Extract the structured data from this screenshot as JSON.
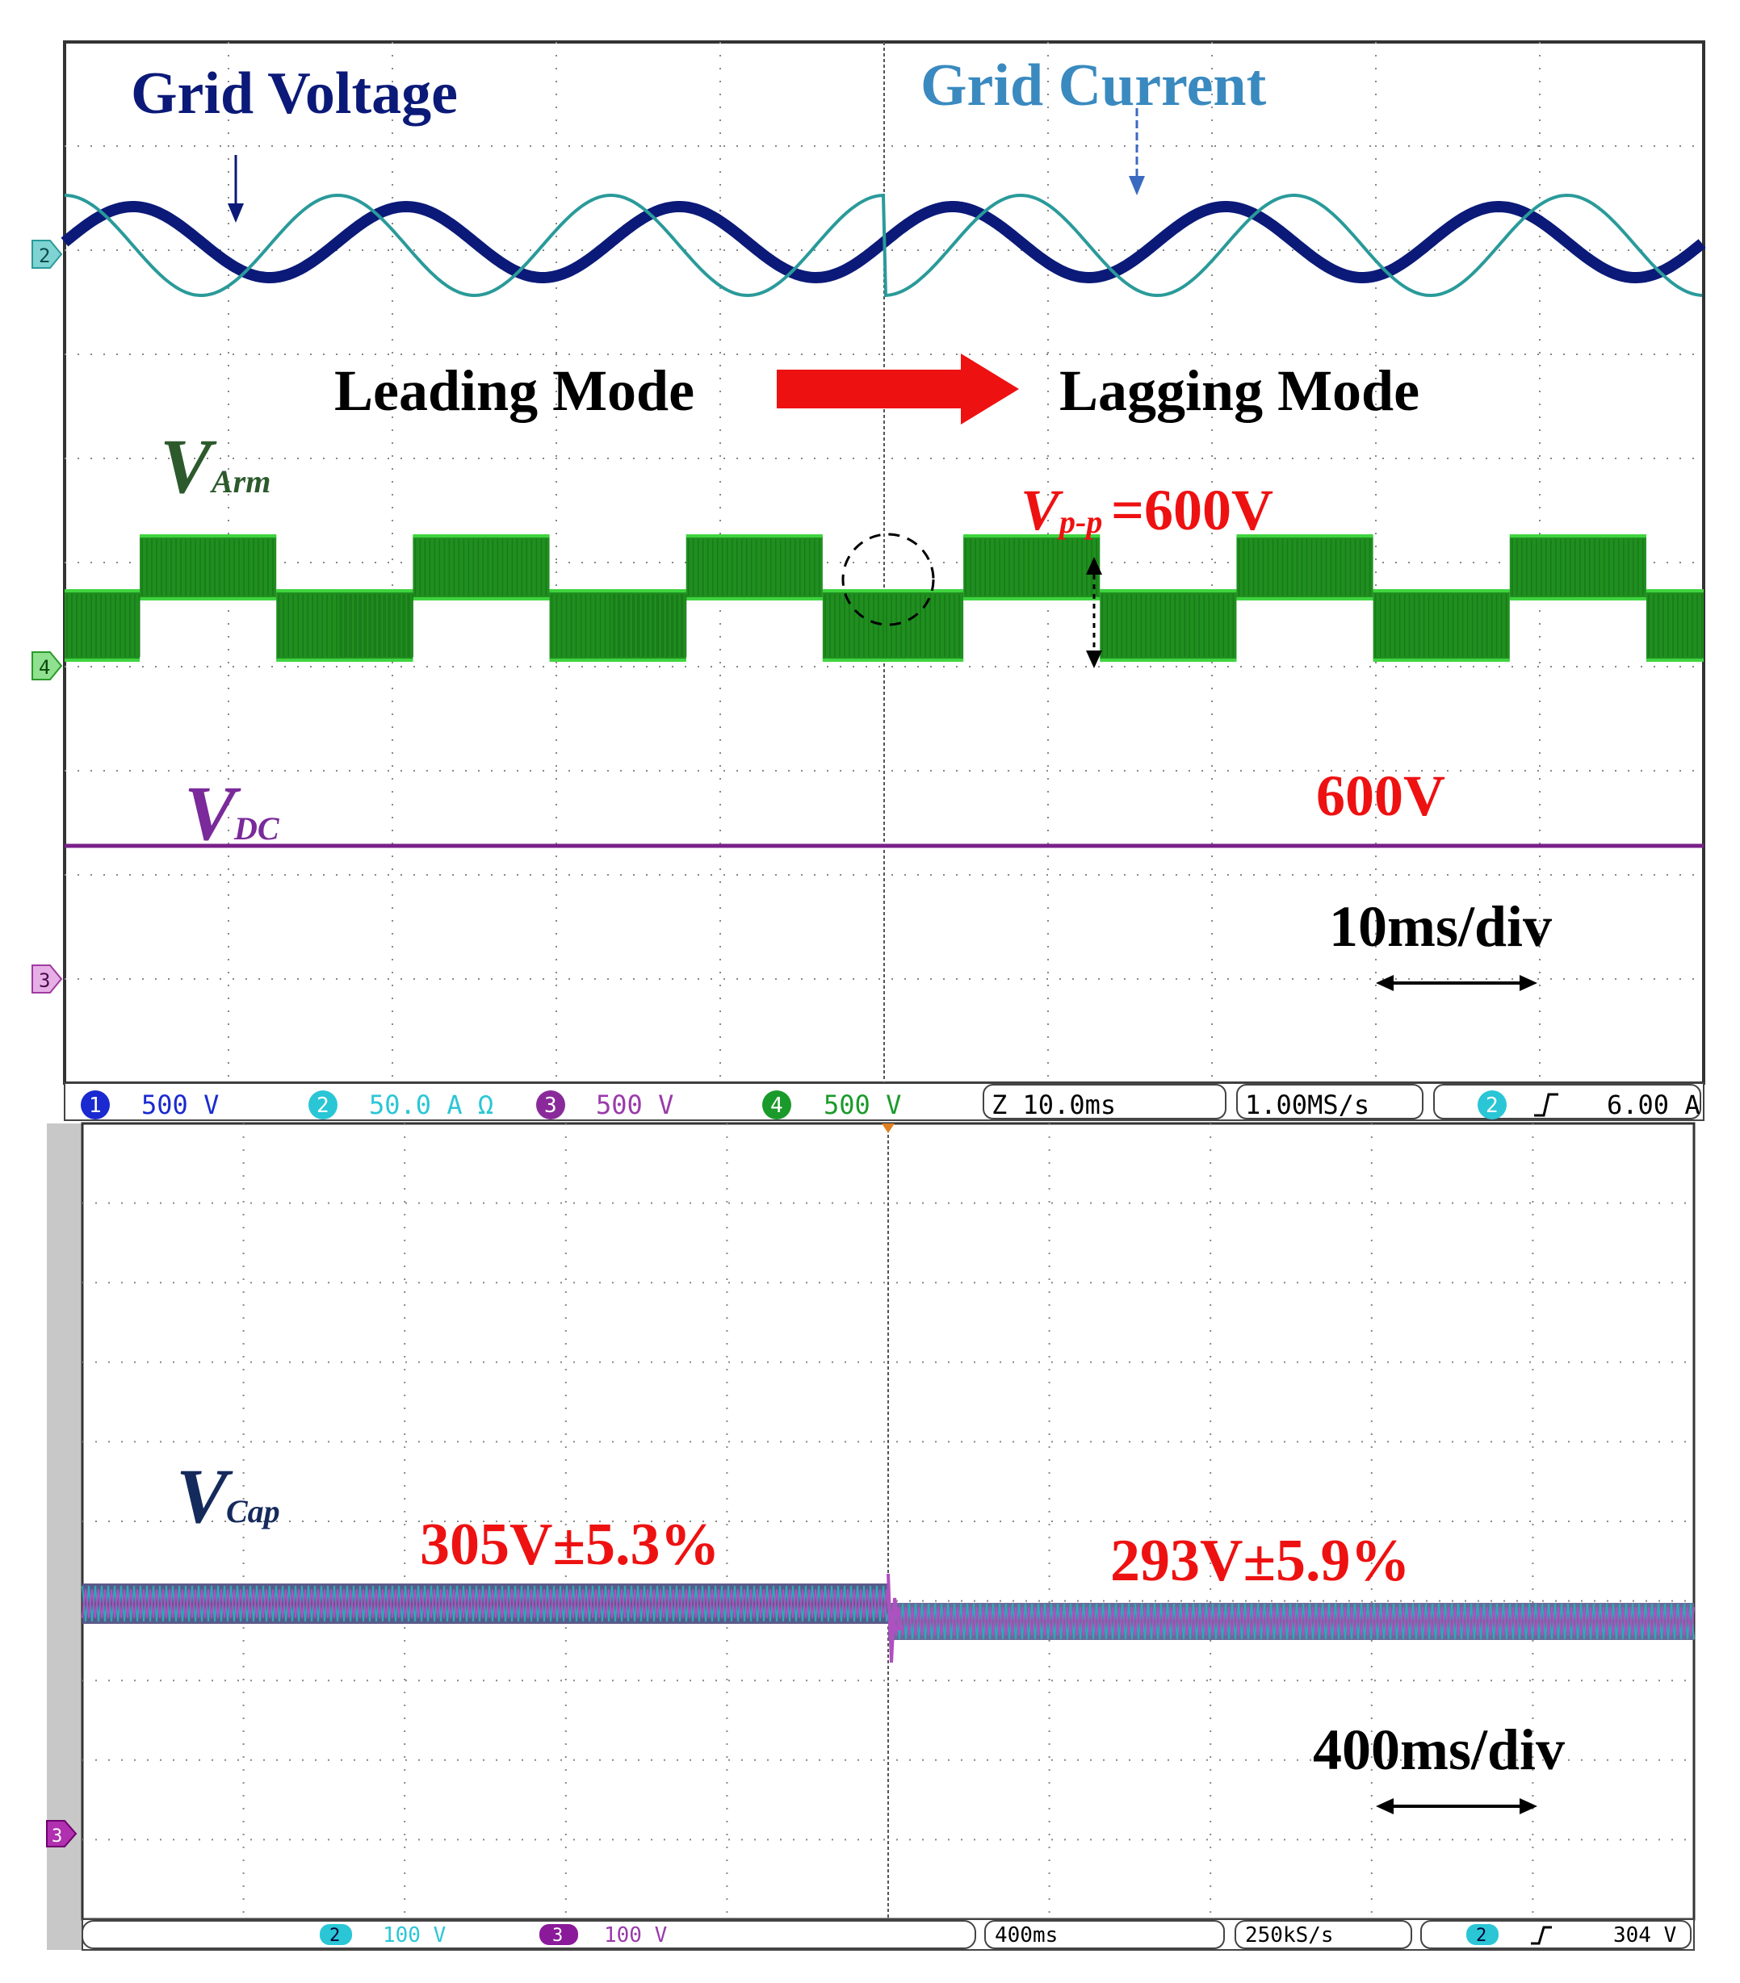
{
  "top_panel": {
    "labels": {
      "grid_voltage": "Grid Voltage",
      "grid_current": "Grid Current",
      "leading_mode": "Leading Mode",
      "lagging_mode": "Lagging Mode",
      "v_arm_main": "V",
      "v_arm_sub": "Arm",
      "vpp_main": "V",
      "vpp_sub": "p-p",
      "vpp_value": "=600V",
      "v_dc_main": "V",
      "v_dc_sub": "DC",
      "dc_value": "600V",
      "timescale": "10ms/div"
    },
    "status_bar": {
      "ch1": {
        "num": "1",
        "scale": "500 V"
      },
      "ch2": {
        "num": "2",
        "scale": "50.0 A Ω"
      },
      "ch3": {
        "num": "3",
        "scale": "500 V"
      },
      "ch4": {
        "num": "4",
        "scale": "500 V"
      },
      "time": "Z 10.0ms",
      "rate": "1.00MS/s",
      "trig_ch": "2",
      "trig_level": "6.00 A"
    },
    "markers": [
      "2",
      "4",
      "3"
    ]
  },
  "bottom_panel": {
    "labels": {
      "v_cap_main": "V",
      "v_cap_sub": "Cap",
      "before_value": "305V±5.3%",
      "after_value": "293V±5.9%",
      "timescale": "400ms/div"
    },
    "status_bar": {
      "ch2": {
        "num": "2",
        "scale": "100 V"
      },
      "ch3": {
        "num": "3",
        "scale": "100 V"
      },
      "time": "400ms",
      "rate": "250kS/s",
      "trig_ch": "2",
      "trig_level": "304 V"
    },
    "markers": [
      "3"
    ]
  },
  "colors": {
    "grid_voltage": "#0b1a78",
    "grid_current": "#2a9a9a",
    "arm": "#1f8f1f",
    "arm_light": "#3fd43f",
    "dc": "#7a1f8a",
    "cap_a": "#2fa8b8",
    "cap_b": "#b050c0",
    "annotation_red": "#ee1111",
    "label_green": "#2d5a2d",
    "label_navy": "#152a5c",
    "label_purple": "#7a2a9a",
    "grid_current_label": "#3a8ac0"
  },
  "chart_data": [
    {
      "type": "line",
      "title": "",
      "time_per_div": "10ms/div",
      "time_divisions": 10,
      "series": [
        {
          "name": "Grid Voltage",
          "shape": "sine",
          "cycles": 6,
          "amplitude_div": 0.4,
          "phase_deg_before": 0,
          "phase_deg_after": 0
        },
        {
          "name": "Grid Current",
          "shape": "sine",
          "cycles": 6,
          "amplitude_div": 0.6,
          "phase_deg_before": 90,
          "phase_deg_after": -90
        },
        {
          "name": "V Arm",
          "shape": "square-pwm",
          "cycles": 6,
          "vpp": 600
        },
        {
          "name": "V DC",
          "shape": "dc",
          "value": 600
        }
      ],
      "transition_at_div": 5
    },
    {
      "type": "line",
      "title": "",
      "time_per_div": "400ms/div",
      "time_divisions": 10,
      "series": [
        {
          "name": "V Cap",
          "before": {
            "mean": 305,
            "ripple_pct": 5.3
          },
          "after": {
            "mean": 293,
            "ripple_pct": 5.9
          }
        }
      ],
      "transition_at_div": 5
    }
  ]
}
